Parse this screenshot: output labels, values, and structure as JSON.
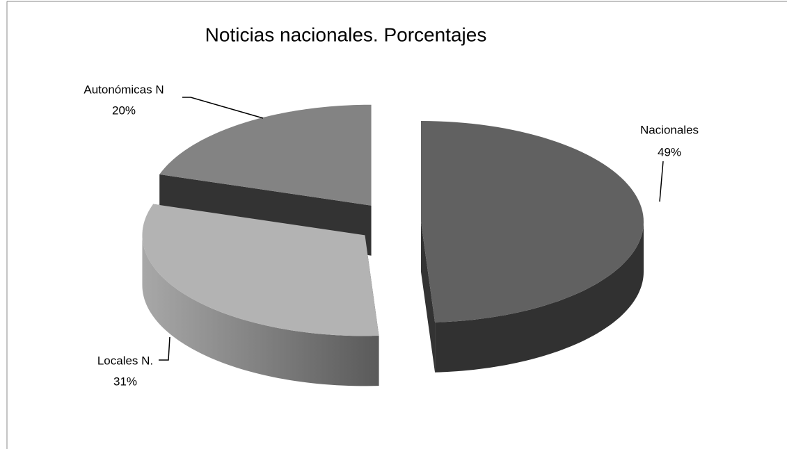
{
  "chart_data": {
    "type": "pie3d",
    "title": "Noticias nacionales. Porcentajes",
    "categories": [
      "Nacionales",
      "Locales N.",
      "Autonómicas N"
    ],
    "values": [
      49,
      31,
      20
    ],
    "value_labels": [
      "49%",
      "31%",
      "20%"
    ],
    "colors": [
      "#616161",
      "#b3b3b3",
      "#838383"
    ]
  }
}
